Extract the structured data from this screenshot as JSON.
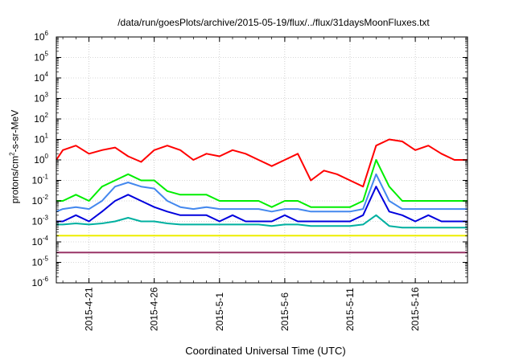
{
  "chart_data": {
    "type": "line",
    "title": "/data/run/goesPlots/archive/2015-05-19/flux/../flux/31daysMoonFluxes.txt",
    "xlabel": "Coordinated Universal Time (UTC)",
    "ylabel_main": "protons/cm",
    "ylabel_sup": "2",
    "ylabel_tail": "-s-sr-MeV",
    "yscale": "log",
    "ylim": [
      1e-06,
      1000000.0
    ],
    "xlim": [
      "2015-04-18T12:00",
      "2015-05-20T00:00"
    ],
    "grid": true,
    "xticks": [
      {
        "date": "2015-04-21",
        "label": "2015-4-21"
      },
      {
        "date": "2015-04-26",
        "label": "2015-4-26"
      },
      {
        "date": "2015-05-01",
        "label": "2015-5-1"
      },
      {
        "date": "2015-05-06",
        "label": "2015-5-6"
      },
      {
        "date": "2015-05-11",
        "label": "2015-5-11"
      },
      {
        "date": "2015-05-16",
        "label": "2015-5-16"
      }
    ],
    "yticks": [
      {
        "exp": -6,
        "base": "10",
        "sup": "-6"
      },
      {
        "exp": -5,
        "base": "10",
        "sup": "-5"
      },
      {
        "exp": -4,
        "base": "10",
        "sup": "-4"
      },
      {
        "exp": -3,
        "base": "10",
        "sup": "-3"
      },
      {
        "exp": -2,
        "base": "10",
        "sup": "-2"
      },
      {
        "exp": -1,
        "base": "10",
        "sup": "-1"
      },
      {
        "exp": 0,
        "base": "10",
        "sup": "0"
      },
      {
        "exp": 1,
        "base": "10",
        "sup": "1"
      },
      {
        "exp": 2,
        "base": "10",
        "sup": "2"
      },
      {
        "exp": 3,
        "base": "10",
        "sup": "3"
      },
      {
        "exp": 4,
        "base": "10",
        "sup": "4"
      },
      {
        "exp": 5,
        "base": "10",
        "sup": "5"
      },
      {
        "exp": 6,
        "base": "10",
        "sup": "6"
      }
    ],
    "x": [
      "2015-04-18",
      "2015-04-19",
      "2015-04-20",
      "2015-04-21",
      "2015-04-22",
      "2015-04-23",
      "2015-04-24",
      "2015-04-25",
      "2015-04-26",
      "2015-04-27",
      "2015-04-28",
      "2015-04-29",
      "2015-04-30",
      "2015-05-01",
      "2015-05-02",
      "2015-05-03",
      "2015-05-04",
      "2015-05-05",
      "2015-05-06",
      "2015-05-07",
      "2015-05-08",
      "2015-05-09",
      "2015-05-10",
      "2015-05-11",
      "2015-05-12",
      "2015-05-13",
      "2015-05-14",
      "2015-05-15",
      "2015-05-16",
      "2015-05-17",
      "2015-05-18",
      "2015-05-19",
      "2015-05-20"
    ],
    "series": [
      {
        "color": "#ff0000",
        "values": [
          1.0,
          3.0,
          5.0,
          2.0,
          3.0,
          4.0,
          1.5,
          0.8,
          3.0,
          5.0,
          3.0,
          1.0,
          2.0,
          1.5,
          3.0,
          2.0,
          1.0,
          0.5,
          1.0,
          2.0,
          0.1,
          0.3,
          0.2,
          0.1,
          0.05,
          5.0,
          10.0,
          8.0,
          3.0,
          5.0,
          2.0,
          1.0,
          1.0
        ]
      },
      {
        "color": "#00ee00",
        "values": [
          0.01,
          0.01,
          0.02,
          0.01,
          0.05,
          0.1,
          0.2,
          0.1,
          0.1,
          0.03,
          0.02,
          0.02,
          0.02,
          0.01,
          0.01,
          0.01,
          0.01,
          0.005,
          0.01,
          0.01,
          0.005,
          0.005,
          0.005,
          0.005,
          0.01,
          1.0,
          0.05,
          0.01,
          0.01,
          0.01,
          0.01,
          0.01,
          0.01
        ]
      },
      {
        "color": "#4488ee",
        "values": [
          0.003,
          0.004,
          0.005,
          0.004,
          0.01,
          0.05,
          0.08,
          0.05,
          0.04,
          0.01,
          0.005,
          0.004,
          0.005,
          0.004,
          0.004,
          0.004,
          0.004,
          0.003,
          0.004,
          0.004,
          0.003,
          0.003,
          0.003,
          0.003,
          0.004,
          0.2,
          0.01,
          0.004,
          0.004,
          0.004,
          0.004,
          0.004,
          0.004
        ]
      },
      {
        "color": "#0000dd",
        "values": [
          0.001,
          0.001,
          0.002,
          0.001,
          0.003,
          0.01,
          0.02,
          0.01,
          0.005,
          0.003,
          0.002,
          0.002,
          0.002,
          0.001,
          0.002,
          0.001,
          0.001,
          0.001,
          0.002,
          0.001,
          0.001,
          0.001,
          0.001,
          0.001,
          0.002,
          0.05,
          0.003,
          0.002,
          0.001,
          0.002,
          0.001,
          0.001,
          0.001
        ]
      },
      {
        "color": "#00b0a0",
        "values": [
          0.0007,
          0.0007,
          0.0008,
          0.0007,
          0.0008,
          0.001,
          0.0015,
          0.001,
          0.001,
          0.0008,
          0.0007,
          0.0007,
          0.0007,
          0.0007,
          0.0007,
          0.0007,
          0.0007,
          0.0006,
          0.0007,
          0.0007,
          0.0006,
          0.0006,
          0.0006,
          0.0006,
          0.0007,
          0.002,
          0.0006,
          0.0005,
          0.0005,
          0.0005,
          0.0005,
          0.0005,
          0.0005
        ]
      },
      {
        "color": "#eeee00",
        "values": [
          0.0002,
          0.0002,
          0.0002,
          0.0002,
          0.0002,
          0.0002,
          0.0002,
          0.0002,
          0.0002,
          0.0002,
          0.0002,
          0.0002,
          0.0002,
          0.0002,
          0.0002,
          0.0002,
          0.0002,
          0.0002,
          0.0002,
          0.0002,
          0.0002,
          0.0002,
          0.0002,
          0.0002,
          0.0002,
          0.0002,
          0.0002,
          0.0002,
          0.0002,
          0.0002,
          0.0002,
          0.0002,
          0.0002
        ]
      },
      {
        "color": "#993366",
        "values": [
          3e-05,
          3e-05,
          3e-05,
          3e-05,
          3e-05,
          3e-05,
          3e-05,
          3e-05,
          3e-05,
          3e-05,
          3e-05,
          3e-05,
          3e-05,
          3e-05,
          3e-05,
          3e-05,
          3e-05,
          3e-05,
          3e-05,
          3e-05,
          3e-05,
          3e-05,
          3e-05,
          3e-05,
          3e-05,
          3e-05,
          3e-05,
          3e-05,
          3e-05,
          3e-05,
          3e-05,
          3e-05,
          3e-05
        ]
      }
    ]
  }
}
